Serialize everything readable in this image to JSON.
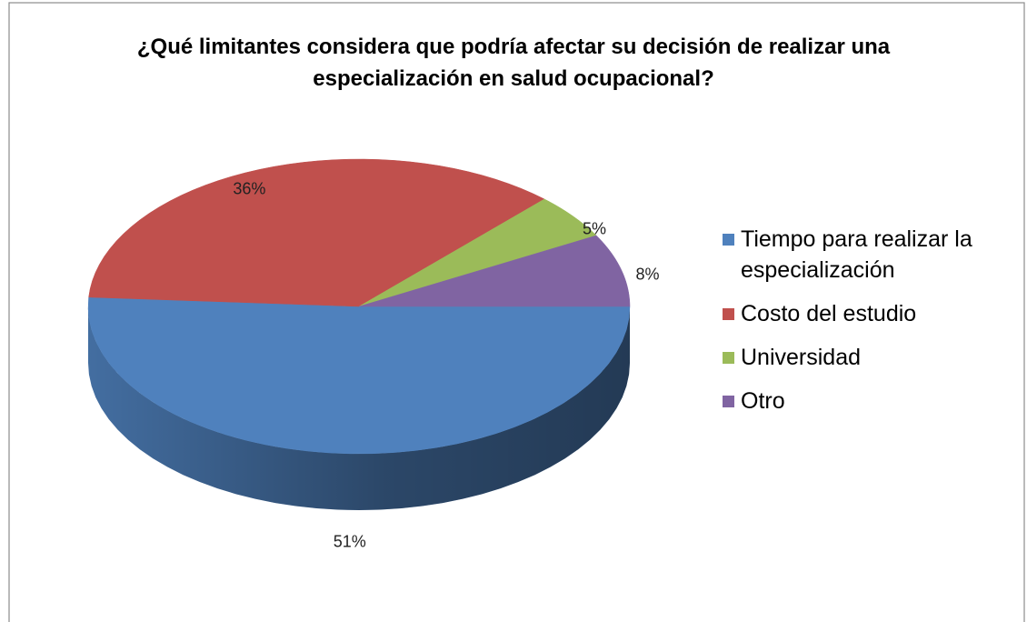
{
  "chart_data": {
    "type": "pie",
    "title": "¿Qué limitantes considera que podría afectar su decisión de realizar una especialización en salud ocupacional?",
    "categories": [
      "Tiempo para realizar la especialización",
      "Costo del estudio",
      "Universidad",
      "Otro"
    ],
    "values": [
      51,
      36,
      5,
      8
    ],
    "value_labels": [
      "51%",
      "36%",
      "5%",
      "8%"
    ],
    "colors": [
      "#4f81bd",
      "#c0504d",
      "#9bbb59",
      "#8064a2"
    ],
    "legend": "right"
  }
}
